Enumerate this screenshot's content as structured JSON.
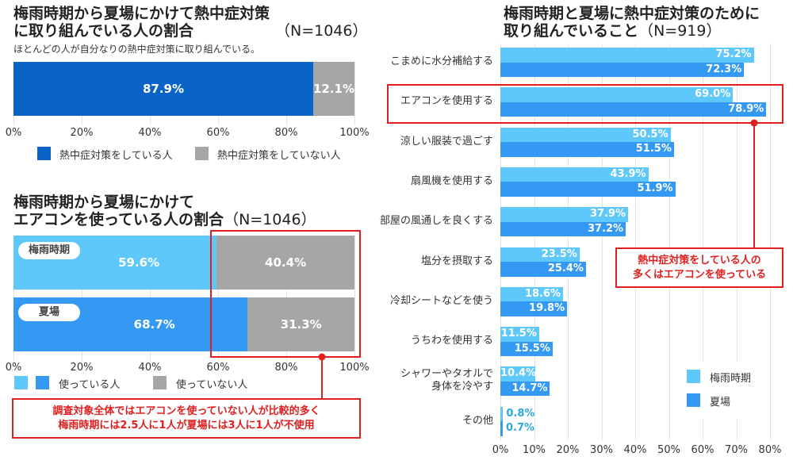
{
  "colors": {
    "dark_blue": "#0a64c8",
    "light_blue": "#5fc8fa",
    "mid_blue": "#3399f2",
    "gray": "#a6a6a6",
    "red": "#e02020"
  },
  "chart_data": [
    {
      "type": "bar",
      "orientation": "horizontal-stacked",
      "title": "梅雨時期から夏場にかけて熱中症対策に取り組んでいる人の割合",
      "n_label": "（N=1046）",
      "subtitle": "ほとんどの人が自分なりの熱中症対策に取り組んでいる。",
      "xlim": [
        0,
        100
      ],
      "ticks": [
        "0%",
        "20%",
        "40%",
        "60%",
        "80%",
        "100%"
      ],
      "series": [
        {
          "name": "熱中症対策をしている人",
          "values": [
            87.9
          ],
          "labels": [
            "87.9%"
          ]
        },
        {
          "name": "熱中症対策をしていない人",
          "values": [
            12.1
          ],
          "labels": [
            "12.1%"
          ]
        }
      ]
    },
    {
      "type": "bar",
      "orientation": "horizontal-stacked",
      "title_line1": "梅雨時期から夏場にかけて",
      "title_line2": "エアコンを使っている人の割合",
      "n_label": "（N=1046）",
      "categories": [
        "梅雨時期",
        "夏場"
      ],
      "xlim": [
        0,
        100
      ],
      "ticks": [
        "0%",
        "20%",
        "40%",
        "60%",
        "80%",
        "100%"
      ],
      "series": [
        {
          "name": "使っている人",
          "values": [
            59.6,
            68.7
          ],
          "labels": [
            "59.6%",
            "68.7%"
          ]
        },
        {
          "name": "使っていない人",
          "values": [
            40.4,
            31.3
          ],
          "labels": [
            "40.4%",
            "31.3%"
          ]
        }
      ],
      "annotation": [
        "調査対象全体ではエアコンを使っていない人が比較的多く",
        "梅雨時期には2.5人に1人が夏場には3人に1人が不使用"
      ]
    },
    {
      "type": "bar",
      "orientation": "horizontal-grouped",
      "title_line1": "梅雨時期と夏場に熱中症対策のために",
      "title_line2": "取り組んでいること",
      "n_label": "（N=919）",
      "categories": [
        "こまめに水分補給する",
        "エアコンを使用する",
        "涼しい服装で過ごす",
        "扇風機を使用する",
        "部屋の風通しを良くする",
        "塩分を摂取する",
        "冷却シートなどを使う",
        "うちわを使用する",
        "シャワーやタオルで\n身体を冷やす",
        "その他"
      ],
      "xlim": [
        0,
        80
      ],
      "ticks": [
        "0%",
        "10%",
        "20%",
        "30%",
        "40%",
        "50%",
        "60%",
        "70%",
        "80%"
      ],
      "grid": true,
      "legend": "bottom-right",
      "series": [
        {
          "name": "梅雨時期",
          "values": [
            75.2,
            69.0,
            50.5,
            43.9,
            37.9,
            23.5,
            18.6,
            11.5,
            10.4,
            0.8
          ],
          "labels": [
            "75.2%",
            "69.0%",
            "50.5%",
            "43.9%",
            "37.9%",
            "23.5%",
            "18.6%",
            "11.5%",
            "10.4%",
            "0.8%"
          ]
        },
        {
          "name": "夏場",
          "values": [
            72.3,
            78.9,
            51.5,
            51.9,
            37.2,
            25.4,
            19.8,
            15.5,
            14.7,
            0.7
          ],
          "labels": [
            "72.3%",
            "78.9%",
            "51.5%",
            "51.9%",
            "37.2%",
            "25.4%",
            "19.8%",
            "15.5%",
            "14.7%",
            "0.7%"
          ]
        }
      ],
      "highlight": "エアコンを使用する",
      "annotation": [
        "熱中症対策をしている人の",
        "多くはエアコンを使っている"
      ]
    }
  ]
}
